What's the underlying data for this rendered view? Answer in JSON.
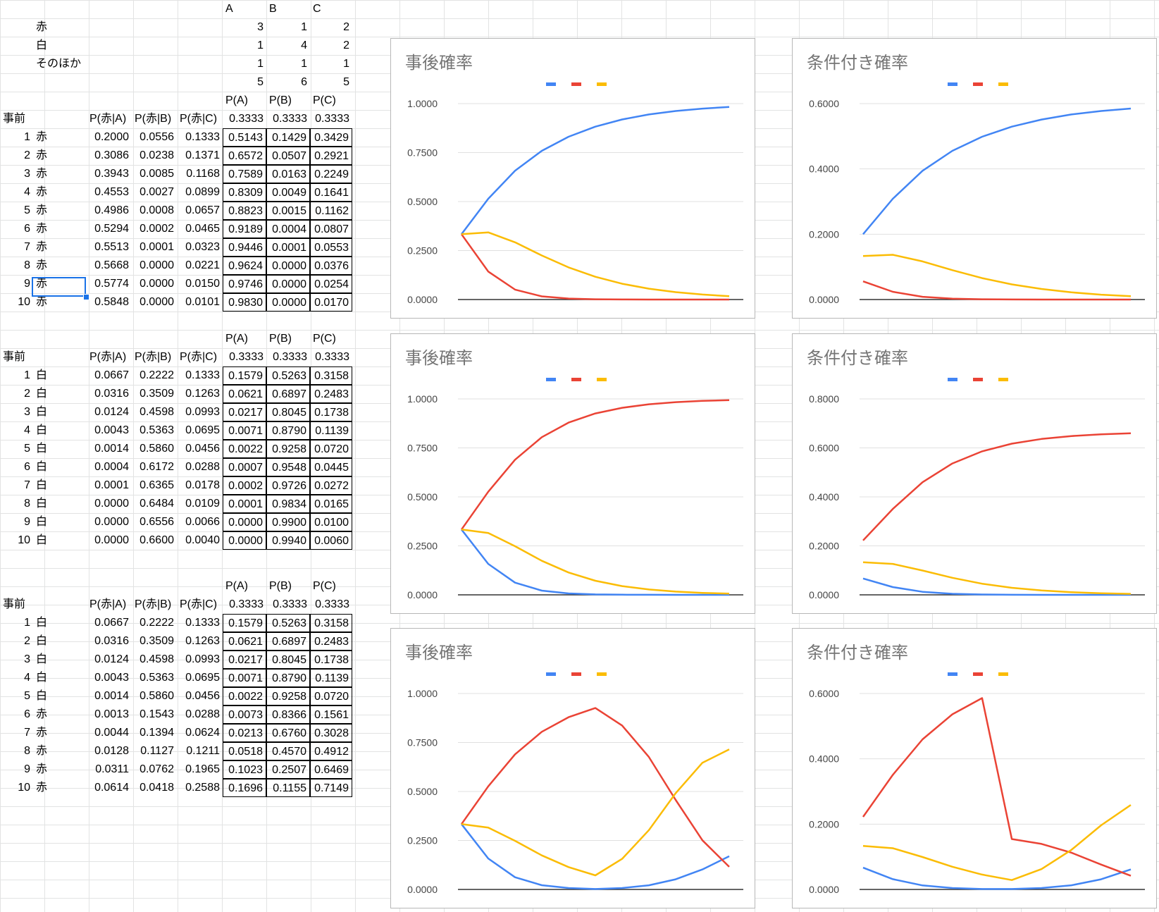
{
  "top_table": {
    "headers": [
      "A",
      "B",
      "C"
    ],
    "rows": [
      {
        "label": "赤",
        "values": [
          "3",
          "1",
          "2"
        ]
      },
      {
        "label": "白",
        "values": [
          "1",
          "4",
          "2"
        ]
      },
      {
        "label": "そのほか",
        "values": [
          "1",
          "1",
          "1"
        ]
      },
      {
        "label": "",
        "values": [
          "5",
          "6",
          "5"
        ]
      }
    ]
  },
  "blocks": [
    {
      "p_headers": [
        "P(A)",
        "P(B)",
        "P(C)"
      ],
      "prior_label": "事前",
      "cond_headers": [
        "P(赤|A)",
        "P(赤|B)",
        "P(赤|C)"
      ],
      "prior_values": [
        "0.3333",
        "0.3333",
        "0.3333"
      ],
      "rows": [
        {
          "n": "1",
          "color": "赤",
          "cond": [
            "0.2000",
            "0.0556",
            "0.1333"
          ],
          "post": [
            "0.5143",
            "0.1429",
            "0.3429"
          ]
        },
        {
          "n": "2",
          "color": "赤",
          "cond": [
            "0.3086",
            "0.0238",
            "0.1371"
          ],
          "post": [
            "0.6572",
            "0.0507",
            "0.2921"
          ]
        },
        {
          "n": "3",
          "color": "赤",
          "cond": [
            "0.3943",
            "0.0085",
            "0.1168"
          ],
          "post": [
            "0.7589",
            "0.0163",
            "0.2249"
          ]
        },
        {
          "n": "4",
          "color": "赤",
          "cond": [
            "0.4553",
            "0.0027",
            "0.0899"
          ],
          "post": [
            "0.8309",
            "0.0049",
            "0.1641"
          ]
        },
        {
          "n": "5",
          "color": "赤",
          "cond": [
            "0.4986",
            "0.0008",
            "0.0657"
          ],
          "post": [
            "0.8823",
            "0.0015",
            "0.1162"
          ]
        },
        {
          "n": "6",
          "color": "赤",
          "cond": [
            "0.5294",
            "0.0002",
            "0.0465"
          ],
          "post": [
            "0.9189",
            "0.0004",
            "0.0807"
          ]
        },
        {
          "n": "7",
          "color": "赤",
          "cond": [
            "0.5513",
            "0.0001",
            "0.0323"
          ],
          "post": [
            "0.9446",
            "0.0001",
            "0.0553"
          ]
        },
        {
          "n": "8",
          "color": "赤",
          "cond": [
            "0.5668",
            "0.0000",
            "0.0221"
          ],
          "post": [
            "0.9624",
            "0.0000",
            "0.0376"
          ]
        },
        {
          "n": "9",
          "color": "赤",
          "cond": [
            "0.5774",
            "0.0000",
            "0.0150"
          ],
          "post": [
            "0.9746",
            "0.0000",
            "0.0254"
          ]
        },
        {
          "n": "10",
          "color": "赤",
          "cond": [
            "0.5848",
            "0.0000",
            "0.0101"
          ],
          "post": [
            "0.9830",
            "0.0000",
            "0.0170"
          ]
        }
      ]
    },
    {
      "p_headers": [
        "P(A)",
        "P(B)",
        "P(C)"
      ],
      "prior_label": "事前",
      "cond_headers": [
        "P(赤|A)",
        "P(赤|B)",
        "P(赤|C)"
      ],
      "prior_values": [
        "0.3333",
        "0.3333",
        "0.3333"
      ],
      "rows": [
        {
          "n": "1",
          "color": "白",
          "cond": [
            "0.0667",
            "0.2222",
            "0.1333"
          ],
          "post": [
            "0.1579",
            "0.5263",
            "0.3158"
          ]
        },
        {
          "n": "2",
          "color": "白",
          "cond": [
            "0.0316",
            "0.3509",
            "0.1263"
          ],
          "post": [
            "0.0621",
            "0.6897",
            "0.2483"
          ]
        },
        {
          "n": "3",
          "color": "白",
          "cond": [
            "0.0124",
            "0.4598",
            "0.0993"
          ],
          "post": [
            "0.0217",
            "0.8045",
            "0.1738"
          ]
        },
        {
          "n": "4",
          "color": "白",
          "cond": [
            "0.0043",
            "0.5363",
            "0.0695"
          ],
          "post": [
            "0.0071",
            "0.8790",
            "0.1139"
          ]
        },
        {
          "n": "5",
          "color": "白",
          "cond": [
            "0.0014",
            "0.5860",
            "0.0456"
          ],
          "post": [
            "0.0022",
            "0.9258",
            "0.0720"
          ]
        },
        {
          "n": "6",
          "color": "白",
          "cond": [
            "0.0004",
            "0.6172",
            "0.0288"
          ],
          "post": [
            "0.0007",
            "0.9548",
            "0.0445"
          ]
        },
        {
          "n": "7",
          "color": "白",
          "cond": [
            "0.0001",
            "0.6365",
            "0.0178"
          ],
          "post": [
            "0.0002",
            "0.9726",
            "0.0272"
          ]
        },
        {
          "n": "8",
          "color": "白",
          "cond": [
            "0.0000",
            "0.6484",
            "0.0109"
          ],
          "post": [
            "0.0001",
            "0.9834",
            "0.0165"
          ]
        },
        {
          "n": "9",
          "color": "白",
          "cond": [
            "0.0000",
            "0.6556",
            "0.0066"
          ],
          "post": [
            "0.0000",
            "0.9900",
            "0.0100"
          ]
        },
        {
          "n": "10",
          "color": "白",
          "cond": [
            "0.0000",
            "0.6600",
            "0.0040"
          ],
          "post": [
            "0.0000",
            "0.9940",
            "0.0060"
          ]
        }
      ]
    },
    {
      "p_headers": [
        "P(A)",
        "P(B)",
        "P(C)"
      ],
      "prior_label": "事前",
      "cond_headers": [
        "P(赤|A)",
        "P(赤|B)",
        "P(赤|C)"
      ],
      "prior_values": [
        "0.3333",
        "0.3333",
        "0.3333"
      ],
      "rows": [
        {
          "n": "1",
          "color": "白",
          "cond": [
            "0.0667",
            "0.2222",
            "0.1333"
          ],
          "post": [
            "0.1579",
            "0.5263",
            "0.3158"
          ]
        },
        {
          "n": "2",
          "color": "白",
          "cond": [
            "0.0316",
            "0.3509",
            "0.1263"
          ],
          "post": [
            "0.0621",
            "0.6897",
            "0.2483"
          ]
        },
        {
          "n": "3",
          "color": "白",
          "cond": [
            "0.0124",
            "0.4598",
            "0.0993"
          ],
          "post": [
            "0.0217",
            "0.8045",
            "0.1738"
          ]
        },
        {
          "n": "4",
          "color": "白",
          "cond": [
            "0.0043",
            "0.5363",
            "0.0695"
          ],
          "post": [
            "0.0071",
            "0.8790",
            "0.1139"
          ]
        },
        {
          "n": "5",
          "color": "白",
          "cond": [
            "0.0014",
            "0.5860",
            "0.0456"
          ],
          "post": [
            "0.0022",
            "0.9258",
            "0.0720"
          ]
        },
        {
          "n": "6",
          "color": "赤",
          "cond": [
            "0.0013",
            "0.1543",
            "0.0288"
          ],
          "post": [
            "0.0073",
            "0.8366",
            "0.1561"
          ]
        },
        {
          "n": "7",
          "color": "赤",
          "cond": [
            "0.0044",
            "0.1394",
            "0.0624"
          ],
          "post": [
            "0.0213",
            "0.6760",
            "0.3028"
          ]
        },
        {
          "n": "8",
          "color": "赤",
          "cond": [
            "0.0128",
            "0.1127",
            "0.1211"
          ],
          "post": [
            "0.0518",
            "0.4570",
            "0.4912"
          ]
        },
        {
          "n": "9",
          "color": "赤",
          "cond": [
            "0.0311",
            "0.0762",
            "0.1965"
          ],
          "post": [
            "0.1023",
            "0.2507",
            "0.6469"
          ]
        },
        {
          "n": "10",
          "color": "赤",
          "cond": [
            "0.0614",
            "0.0418",
            "0.2588"
          ],
          "post": [
            "0.1696",
            "0.1155",
            "0.7149"
          ]
        }
      ]
    }
  ],
  "colors": {
    "A": "#4285f4",
    "B": "#ea4335",
    "C": "#fbbc04",
    "grid": "#e0e0e0",
    "axis": "#333333"
  },
  "chart_data": [
    {
      "type": "line",
      "title": "事後確率",
      "ylim": [
        0,
        1
      ],
      "yticks": [
        "0.0000",
        "0.2500",
        "0.5000",
        "0.7500",
        "1.0000"
      ],
      "x": [
        0,
        1,
        2,
        3,
        4,
        5,
        6,
        7,
        8,
        9,
        10
      ],
      "series": [
        {
          "values": [
            0.3333,
            0.5143,
            0.6572,
            0.7589,
            0.8309,
            0.8823,
            0.9189,
            0.9446,
            0.9624,
            0.9746,
            0.983
          ]
        },
        {
          "values": [
            0.3333,
            0.1429,
            0.0507,
            0.0163,
            0.0049,
            0.0015,
            0.0004,
            0.0001,
            0.0,
            0.0,
            0.0
          ]
        },
        {
          "values": [
            0.3333,
            0.3429,
            0.2921,
            0.2249,
            0.1641,
            0.1162,
            0.0807,
            0.0553,
            0.0376,
            0.0254,
            0.017
          ]
        }
      ],
      "legend": "top-center",
      "grid": true
    },
    {
      "type": "line",
      "title": "条件付き確率",
      "ylim": [
        0,
        0.6
      ],
      "yticks": [
        "0.0000",
        "0.2000",
        "0.4000",
        "0.6000"
      ],
      "x": [
        1,
        2,
        3,
        4,
        5,
        6,
        7,
        8,
        9,
        10
      ],
      "series": [
        {
          "values": [
            0.2,
            0.3086,
            0.3943,
            0.4553,
            0.4986,
            0.5294,
            0.5513,
            0.5668,
            0.5774,
            0.5848
          ]
        },
        {
          "values": [
            0.0556,
            0.0238,
            0.0085,
            0.0027,
            0.0008,
            0.0002,
            0.0001,
            0.0,
            0.0,
            0.0
          ]
        },
        {
          "values": [
            0.1333,
            0.1371,
            0.1168,
            0.0899,
            0.0657,
            0.0465,
            0.0323,
            0.0221,
            0.015,
            0.0101
          ]
        }
      ],
      "legend": "top-center",
      "grid": true
    },
    {
      "type": "line",
      "title": "事後確率",
      "ylim": [
        0,
        1
      ],
      "yticks": [
        "0.0000",
        "0.2500",
        "0.5000",
        "0.7500",
        "1.0000"
      ],
      "x": [
        0,
        1,
        2,
        3,
        4,
        5,
        6,
        7,
        8,
        9,
        10
      ],
      "series": [
        {
          "values": [
            0.3333,
            0.1579,
            0.0621,
            0.0217,
            0.0071,
            0.0022,
            0.0007,
            0.0002,
            0.0001,
            0.0,
            0.0
          ]
        },
        {
          "values": [
            0.3333,
            0.5263,
            0.6897,
            0.8045,
            0.879,
            0.9258,
            0.9548,
            0.9726,
            0.9834,
            0.99,
            0.994
          ]
        },
        {
          "values": [
            0.3333,
            0.3158,
            0.2483,
            0.1738,
            0.1139,
            0.072,
            0.0445,
            0.0272,
            0.0165,
            0.01,
            0.006
          ]
        }
      ],
      "legend": "top-center",
      "grid": true
    },
    {
      "type": "line",
      "title": "条件付き確率",
      "ylim": [
        0,
        0.8
      ],
      "yticks": [
        "0.0000",
        "0.2000",
        "0.4000",
        "0.6000",
        "0.8000"
      ],
      "x": [
        1,
        2,
        3,
        4,
        5,
        6,
        7,
        8,
        9,
        10
      ],
      "series": [
        {
          "values": [
            0.0667,
            0.0316,
            0.0124,
            0.0043,
            0.0014,
            0.0004,
            0.0001,
            0.0,
            0.0,
            0.0
          ]
        },
        {
          "values": [
            0.2222,
            0.3509,
            0.4598,
            0.5363,
            0.586,
            0.6172,
            0.6365,
            0.6484,
            0.6556,
            0.66
          ]
        },
        {
          "values": [
            0.1333,
            0.1263,
            0.0993,
            0.0695,
            0.0456,
            0.0288,
            0.0178,
            0.0109,
            0.0066,
            0.004
          ]
        }
      ],
      "legend": "top-center",
      "grid": true
    },
    {
      "type": "line",
      "title": "事後確率",
      "ylim": [
        0,
        1
      ],
      "yticks": [
        "0.0000",
        "0.2500",
        "0.5000",
        "0.7500",
        "1.0000"
      ],
      "x": [
        0,
        1,
        2,
        3,
        4,
        5,
        6,
        7,
        8,
        9,
        10
      ],
      "series": [
        {
          "values": [
            0.3333,
            0.1579,
            0.0621,
            0.0217,
            0.0071,
            0.0022,
            0.0073,
            0.0213,
            0.0518,
            0.1023,
            0.1696
          ]
        },
        {
          "values": [
            0.3333,
            0.5263,
            0.6897,
            0.8045,
            0.879,
            0.9258,
            0.8366,
            0.676,
            0.457,
            0.2507,
            0.1155
          ]
        },
        {
          "values": [
            0.3333,
            0.3158,
            0.2483,
            0.1738,
            0.1139,
            0.072,
            0.1561,
            0.3028,
            0.4912,
            0.6469,
            0.7149
          ]
        }
      ],
      "legend": "top-center",
      "grid": true
    },
    {
      "type": "line",
      "title": "条件付き確率",
      "ylim": [
        0,
        0.6
      ],
      "yticks": [
        "0.0000",
        "0.2000",
        "0.4000",
        "0.6000"
      ],
      "x": [
        1,
        2,
        3,
        4,
        5,
        6,
        7,
        8,
        9,
        10
      ],
      "series": [
        {
          "values": [
            0.0667,
            0.0316,
            0.0124,
            0.0043,
            0.0014,
            0.0013,
            0.0044,
            0.0128,
            0.0311,
            0.0614
          ]
        },
        {
          "values": [
            0.2222,
            0.3509,
            0.4598,
            0.5363,
            0.586,
            0.1543,
            0.1394,
            0.1127,
            0.0762,
            0.0418
          ]
        },
        {
          "values": [
            0.1333,
            0.1263,
            0.0993,
            0.0695,
            0.0456,
            0.0288,
            0.0624,
            0.1211,
            0.1965,
            0.2588
          ]
        }
      ],
      "legend": "top-center",
      "grid": true
    }
  ]
}
